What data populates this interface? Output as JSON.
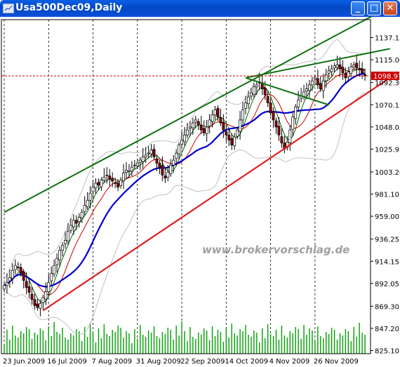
{
  "window": {
    "title": "Usa500Dec09,Daily",
    "buttons": {
      "minimize": "_",
      "maximize": "□",
      "close": "✕"
    }
  },
  "watermark": "www.brokervorschlag.de",
  "current_price_label": "1098.97",
  "colors": {
    "background": "#ffffff",
    "bull_candle": "#ffffff",
    "bear_candle": "#8b0000",
    "candle_outline": "#000000",
    "ma_blue": "#0000cc",
    "ma_red": "#cc0000",
    "ma_green": "#006400",
    "bollinger": "#c0c0c0",
    "channel_green": "#107010",
    "channel_red": "#e02020",
    "volume": "#00a000",
    "price_line": "#cc0000",
    "price_label_bg": "#cc0000"
  },
  "chart_data": {
    "type": "candlestick",
    "title": "Usa500Dec09,Daily",
    "y_ticks": [
      "1137.15",
      "1115.00",
      "1092.30",
      "1070.15",
      "1048.05",
      "1025.95",
      "1003.20",
      "981.10",
      "959.00",
      "936.25",
      "914.15",
      "892.05",
      "869.30",
      "847.20",
      "825.10"
    ],
    "x_labels": [
      "23 Jun 2009",
      "16 Jul 2009",
      "7 Aug 2009",
      "31 Aug 2009",
      "22 Sep 2009",
      "14 Oct 2009",
      "4 Nov 2009",
      "26 Nov 2009"
    ],
    "ylim": [
      822,
      1155
    ],
    "grid": "vertical-dotted",
    "closes": [
      890,
      893,
      898,
      905,
      910,
      908,
      902,
      895,
      888,
      883,
      876,
      870,
      868,
      872,
      878,
      884,
      893,
      902,
      910,
      917,
      925,
      930,
      935,
      944,
      950,
      955,
      952,
      958,
      963,
      970,
      975,
      982,
      988,
      992,
      990,
      995,
      998,
      1000,
      996,
      994,
      992,
      988,
      995,
      1002,
      1005,
      1004,
      1008,
      1010,
      1012,
      1015,
      1018,
      1020,
      1022,
      1025,
      1018,
      1012,
      1008,
      1000,
      997,
      1003,
      1010,
      1015,
      1022,
      1030,
      1035,
      1040,
      1045,
      1048,
      1052,
      1055,
      1050,
      1045,
      1042,
      1048,
      1055,
      1060,
      1065,
      1058,
      1052,
      1045,
      1040,
      1035,
      1030,
      1038,
      1045,
      1055,
      1065,
      1072,
      1078,
      1082,
      1088,
      1090,
      1093,
      1086,
      1080,
      1072,
      1062,
      1055,
      1048,
      1040,
      1032,
      1026,
      1033,
      1045,
      1058,
      1068,
      1075,
      1079,
      1083,
      1086,
      1090,
      1094,
      1097,
      1090,
      1086,
      1094,
      1100,
      1104,
      1106,
      1109,
      1110,
      1106,
      1102,
      1097,
      1103,
      1108,
      1110,
      1107,
      1105,
      1102,
      1098.97
    ],
    "channels": {
      "green_upper_start": [
        0,
        963
      ],
      "green_upper_end": [
        139,
        1168
      ],
      "green_fan_start": [
        87,
        1097
      ],
      "green_fan_end": [
        139,
        1126
      ],
      "green_down_start": [
        87,
        1097
      ],
      "green_down_end": [
        117,
        1070
      ],
      "red_lower_start": [
        14,
        865
      ],
      "red_lower_end": [
        139,
        1097
      ]
    }
  }
}
